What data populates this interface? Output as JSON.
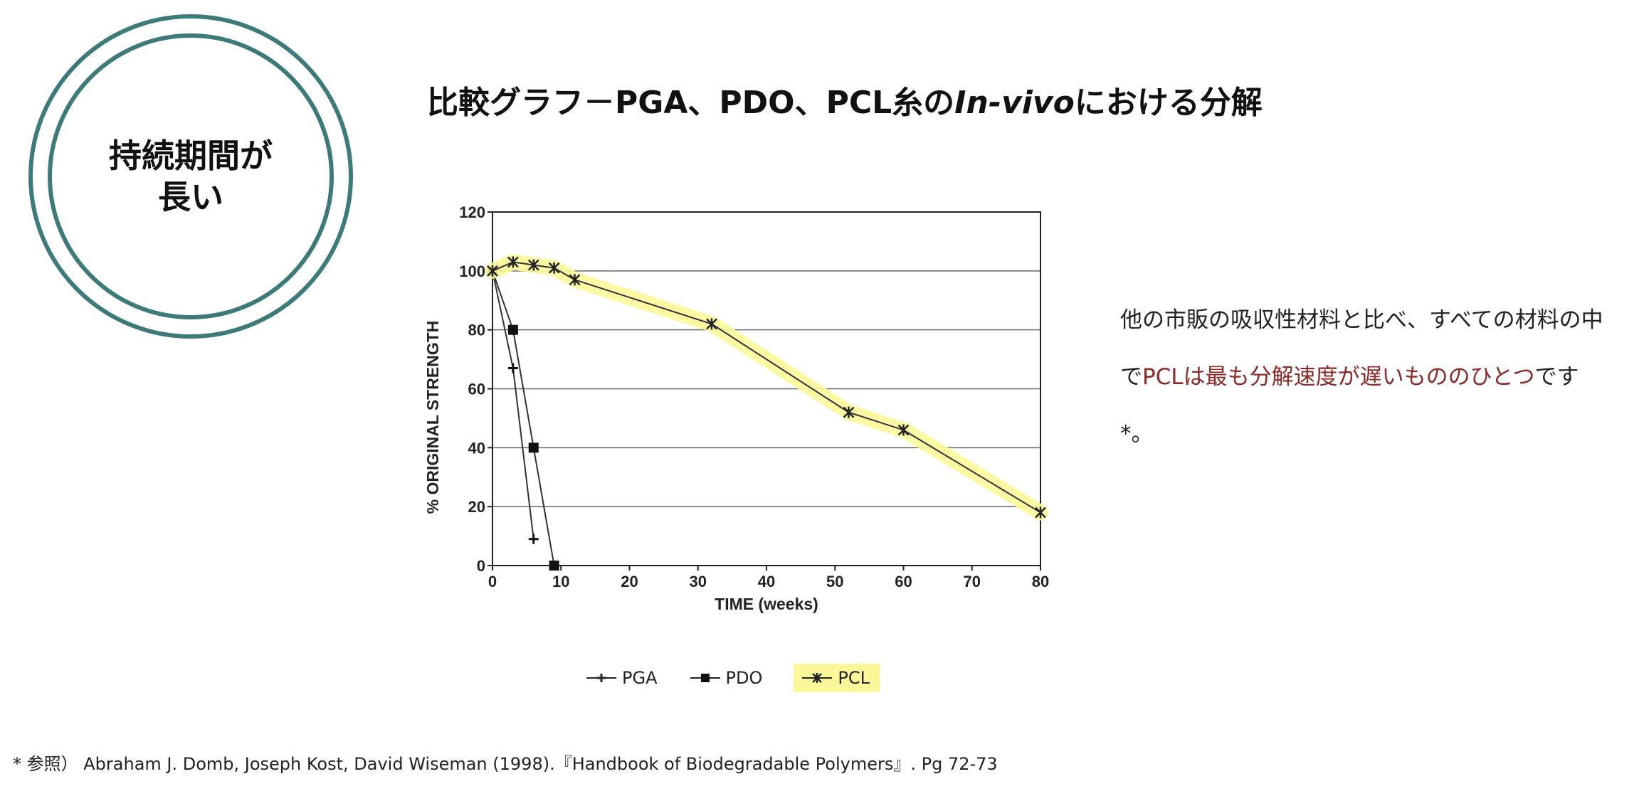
{
  "badge": {
    "text": "持続期間が\n長い",
    "color": "#3d7a7a"
  },
  "title": {
    "prefix": "比較グラフ－PGA、PDO、PCL糸の",
    "italic": "In-vivo",
    "suffix": "における分解"
  },
  "chart_data": {
    "type": "line",
    "xlabel": "TIME (weeks)",
    "ylabel": "% ORIGINAL STRENGTH",
    "xlim": [
      0,
      80
    ],
    "ylim": [
      0,
      120
    ],
    "xticks": [
      0,
      10,
      20,
      30,
      40,
      50,
      60,
      70,
      80
    ],
    "yticks": [
      0,
      20,
      40,
      60,
      80,
      100,
      120
    ],
    "grid": "horizontal",
    "legend": "bottom",
    "series": [
      {
        "name": "PGA",
        "marker": "plus",
        "points": [
          [
            0,
            100
          ],
          [
            3,
            67
          ],
          [
            6,
            9
          ]
        ]
      },
      {
        "name": "PDO",
        "marker": "square",
        "points": [
          [
            0,
            100
          ],
          [
            3,
            80
          ],
          [
            6,
            40
          ],
          [
            9,
            0
          ]
        ]
      },
      {
        "name": "PCL",
        "marker": "star",
        "highlight": "#fbf89a",
        "points": [
          [
            0,
            100
          ],
          [
            3,
            103
          ],
          [
            6,
            102
          ],
          [
            9,
            101
          ],
          [
            12,
            97
          ],
          [
            32,
            82
          ],
          [
            52,
            52
          ],
          [
            60,
            46
          ],
          [
            80,
            18
          ]
        ]
      }
    ]
  },
  "description": {
    "part1": "他の市販の吸収性材料と比べ、すべての材料の中で",
    "highlight": "PCLは最も分解速度が遅いもののひとつ",
    "part2": "です*。",
    "highlight_color": "#8b2a26"
  },
  "citation": "* 参照） Abraham J. Domb, Joseph Kost, David Wiseman (1998).『Handbook of Biodegradable Polymers』. Pg 72-73"
}
